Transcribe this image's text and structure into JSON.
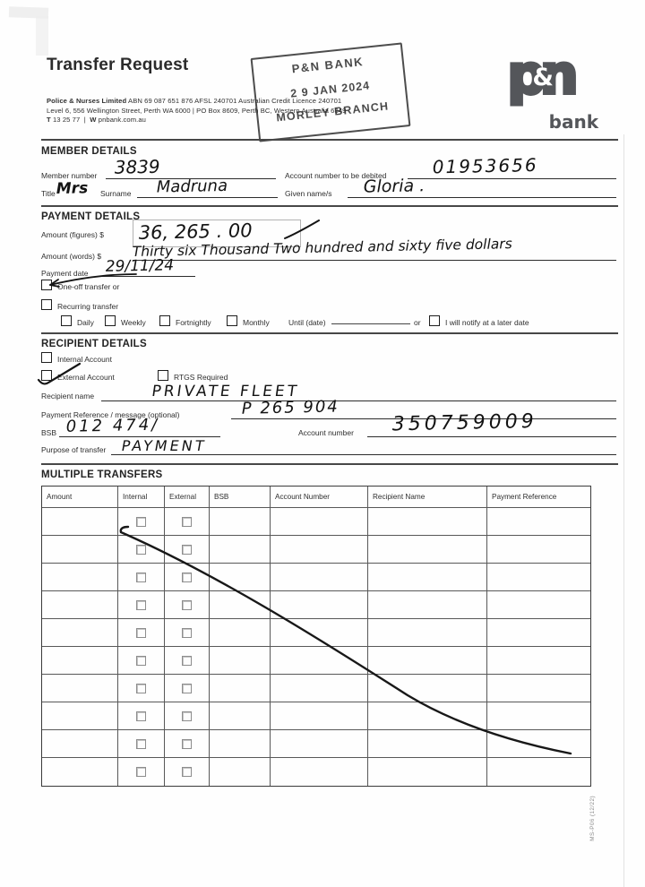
{
  "header": {
    "title": "Transfer Request",
    "org_bold": "Police & Nurses Limited",
    "org_rest": "ABN 69 087 651 876 AFSL 240701 Australian Credit Licence 240701",
    "address_line": "Level 6, 556 Wellington Street, Perth WA 6000   |   PO Box 8609, Perth BC, Western Australia 6849",
    "phone_label": "T",
    "phone": "13 25 77",
    "web_label": "W",
    "website": "pnbank.com.au",
    "logo_p": "p",
    "logo_amp": "&",
    "logo_n": "n",
    "logo_sub": "bank",
    "logo_color": "#54565a"
  },
  "stamp": {
    "bank": "P&N BANK",
    "date": "2 9  JAN 2024",
    "branch": "MORLEY BRANCH"
  },
  "member_details": {
    "heading": "MEMBER DETAILS",
    "member_number_label": "Member number",
    "member_number_value": "3839",
    "debit_account_label": "Account number to be debited",
    "debit_account_value": "01953656",
    "title_label": "Title",
    "title_value": "Mrs",
    "surname_label": "Surname",
    "surname_value": "Madruna",
    "given_label": "Given name/s",
    "given_value": "Gloria ."
  },
  "payment_details": {
    "heading": "PAYMENT DETAILS",
    "amount_figures_label": "Amount (figures) $",
    "amount_figures_value": "36, 265 . 00",
    "amount_words_label": "Amount (words) $",
    "amount_words_value": "Thirty six Thousand Two hundred and sixty five dollars",
    "payment_date_label": "Payment date",
    "payment_date_value": "29/11/24",
    "one_off_label": "One-off transfer or",
    "one_off_checked": true,
    "recurring_label": "Recurring transfer",
    "recurring_checked": false,
    "frequency_options": [
      "Daily",
      "Weekly",
      "Fortnightly",
      "Monthly"
    ],
    "until_label": "Until (date)",
    "or_label": "or",
    "notify_label": "I will notify at a later date"
  },
  "recipient_details": {
    "heading": "RECIPIENT DETAILS",
    "internal_label": "Internal Account",
    "internal_checked": false,
    "external_label": "External Account",
    "external_checked": true,
    "rtgs_label": "RTGS Required",
    "rtgs_checked": false,
    "recipient_name_label": "Recipient name",
    "recipient_name_value": "PRIVATE FLEET",
    "reference_label": "Payment Reference / message (optional)",
    "reference_value": "P 265 904",
    "bsb_label": "BSB",
    "bsb_value": "012  474/",
    "account_label": "Account number",
    "account_value": "350759009",
    "purpose_label": "Purpose of transfer",
    "purpose_value": "PAYMENT"
  },
  "multiple_transfers": {
    "heading": "MULTIPLE TRANSFERS",
    "columns": [
      "Amount",
      "Internal",
      "External",
      "BSB",
      "Account Number",
      "Recipient Name",
      "Payment Reference"
    ],
    "row_count": 10
  },
  "form_code": "MS-P06 (12/22)"
}
